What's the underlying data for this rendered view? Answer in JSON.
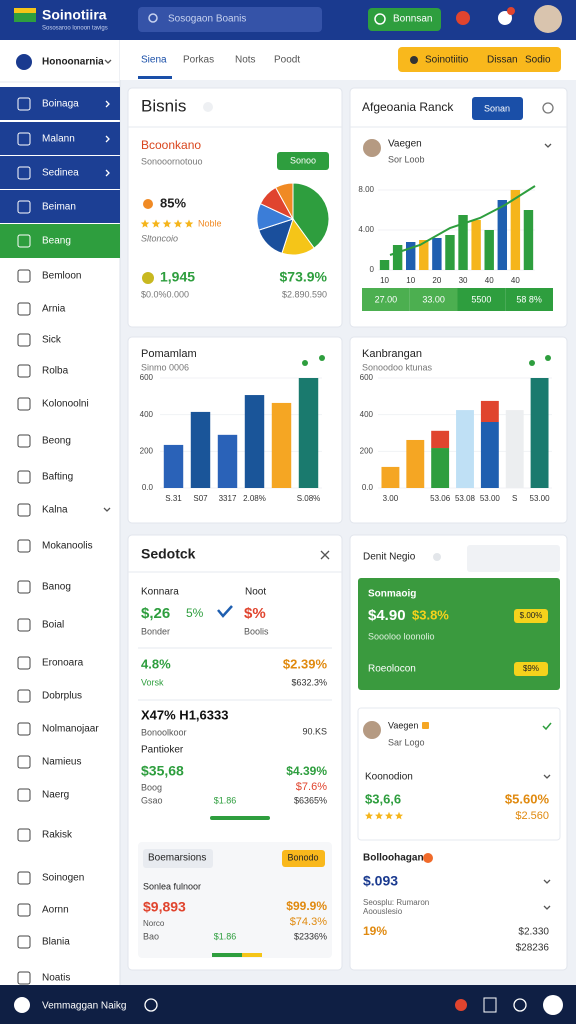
{
  "header": {
    "title": "Soinotiira",
    "subtitle": "Sososaroo lonoon tavigs",
    "search": "Sosogaon Boanis",
    "button": "Bonnsan"
  },
  "sidebar": {
    "top": "Honoonarnia",
    "items": [
      "Boinaga",
      "Malann",
      "Sedinea",
      "Beiman",
      "Beang",
      "Bemloon",
      "Arnia",
      "Sick",
      "Rolba",
      "Kolonoolni",
      "Beong",
      "Bafting",
      "Kalna",
      "Mokanoolis",
      "Banog",
      "Boial",
      "Eronoara",
      "Dobrplus",
      "Nolmanojaar",
      "Namieus",
      "Naerg",
      "Rakisk",
      "Soinogen",
      "Aornn",
      "Blania",
      "Noatis"
    ]
  },
  "tabs": [
    "Siena",
    "Porkas",
    "Nots",
    "Poodt"
  ],
  "actions": [
    "Soinotiitio",
    "Dissan",
    "Sodio"
  ],
  "card1": {
    "title": "Bisnis",
    "subtitle": "Bcoonkano",
    "note": "Sonooornotouo",
    "button": "Sonoo",
    "stat": "85%",
    "rating": "Noble",
    "rating_note": "Sltoncoio",
    "value1": "1,945",
    "value1_note": "$0.0%0.000",
    "value2": "$73.9%",
    "value2_note": "$2.890.590",
    "pie": {
      "values": [
        40,
        15,
        15,
        12,
        10,
        8
      ],
      "colors": [
        "#2e9e3e",
        "#f5c518",
        "#1a4f9c",
        "#3b7dd8",
        "#e0442e",
        "#f08a24"
      ]
    }
  },
  "card2": {
    "title": "Afgeoania Ranck",
    "button": "Sonan",
    "person": "Vaegen",
    "person_note": "Sor Loob",
    "chart": {
      "ylim": [
        0,
        8
      ],
      "yticks": [
        0,
        {
          "value": 4,
          "label": "4.00"
        },
        {
          "value": 8,
          "label": "8.00"
        }
      ],
      "categories": [
        "10",
        null,
        "10",
        null,
        "20",
        null,
        "30",
        null,
        "40",
        null,
        "40",
        null
      ],
      "bars": [
        [
          {
            "value": 1,
            "color": "#2e9e3e"
          }
        ],
        [
          {
            "value": 2.5,
            "color": "#2e9e3e"
          }
        ],
        [
          {
            "value": 2.8,
            "color": "#1f5fb0"
          }
        ],
        [
          {
            "value": 3,
            "color": "#f5b51c"
          }
        ],
        [
          {
            "value": 3.2,
            "color": "#1f5fb0"
          }
        ],
        [
          {
            "value": 3.5,
            "color": "#2e9e3e"
          }
        ],
        [
          {
            "value": 5.5,
            "color": "#2e9e3e"
          }
        ],
        [
          {
            "value": 5,
            "color": "#f5b51c"
          }
        ],
        [
          {
            "value": 4,
            "color": "#2e9e3e"
          }
        ],
        [
          {
            "value": 7,
            "color": "#1f5fb0"
          }
        ],
        [
          {
            "value": 8,
            "color": "#f5b51c"
          }
        ],
        [
          {
            "value": 6,
            "color": "#2e9e3e"
          }
        ]
      ]
    },
    "stats": [
      "27.00",
      "33.00",
      "5500",
      "58 8%"
    ]
  },
  "card3": {
    "title": "Pomamlam",
    "subtitle": "Sinmo 0006",
    "chart": {
      "ylim": [
        0,
        600
      ],
      "yticks": [
        {
          "value": 0,
          "label": "0.0"
        },
        200,
        400,
        600
      ],
      "categories": [
        "S.31",
        "S07",
        "3317",
        "2.08%",
        null,
        "S.08%"
      ],
      "bars": [
        [
          {
            "value": 235,
            "color": "#2a62b8"
          }
        ],
        [
          {
            "value": 415,
            "color": "#1a5599"
          }
        ],
        [
          {
            "value": 290,
            "color": "#2a62b8"
          }
        ],
        [
          {
            "value": 507,
            "color": "#1a5599"
          }
        ],
        [
          {
            "value": 464,
            "color": "#f5a623"
          }
        ],
        [
          {
            "value": 600,
            "color": "#1a7a6e"
          }
        ]
      ]
    }
  },
  "card4": {
    "title": "Kanbrangan",
    "subtitle": "Sonoodoo ktunas",
    "chart": {
      "ylim": [
        0,
        600
      ],
      "yticks": [
        {
          "value": 0,
          "label": "0.0"
        },
        200,
        400,
        600
      ],
      "categories": [
        "3.00",
        null,
        "53.06",
        "53.08",
        "53.00",
        "S",
        "53.00"
      ],
      "bars": [
        [
          {
            "value": 115,
            "color": "#f5a623"
          }
        ],
        [
          {
            "value": 262,
            "color": "#f5a623"
          }
        ],
        [
          {
            "value": 218,
            "color": "#2e9e3e"
          },
          {
            "value": 94,
            "color": "#e0442e"
          }
        ],
        [
          {
            "value": 425,
            "color": "#bfe0f5"
          }
        ],
        [
          {
            "value": 360,
            "color": "#1f5fb0"
          },
          {
            "value": 115,
            "color": "#e0442e"
          }
        ],
        [
          {
            "value": 425,
            "color": "#eceef0"
          }
        ],
        [
          {
            "value": 600,
            "color": "#1a7a6e"
          }
        ]
      ]
    }
  },
  "card5": {
    "title": "Sedotck",
    "label1": "Konnara",
    "label2": "Noot",
    "v1": "$,26",
    "v1b": "5%",
    "v2": "$%",
    "n1": "Bonder",
    "n2": "Boolis",
    "r1a": "4.8%",
    "r1b": "$2.39%",
    "r1c": "Vorsk",
    "r1d": "$632.3%",
    "headline": "X47% H1,6333",
    "h_note": "Bonoolkoor",
    "h_value": "90.KS",
    "section": "Pantioker",
    "r2a": "$35,68",
    "r2b": "$4.39%",
    "r2c": "Boog",
    "r2d": "$7.6%",
    "r2e": "Gsao",
    "r2f": "$1.86",
    "r2g": "$6365%",
    "box": {
      "label": "Boemarsions",
      "button": "Bonodo",
      "title": "Sonlea fulnoor",
      "a": "$9,893",
      "b": "$99.9%",
      "c": "Norco",
      "d": "$74.3%",
      "e": "Bao",
      "f": "$1.86",
      "g": "$2336%"
    }
  },
  "card6": {
    "title": "Denit Negio",
    "green": {
      "title": "Sonmaoig",
      "value": "$4.90",
      "change": "$3.8%",
      "note": "Soooloo loonolio",
      "pill1": "$.00%",
      "label": "Roeolocon",
      "pill2": "$9%"
    },
    "person": "Vaegen",
    "person_note": "Sar Logo",
    "section": "Koonodion",
    "a": "$3,6,6",
    "b": "$5.60%",
    "c": "$2.560",
    "section2": "Bolloohagan",
    "value": "$.093",
    "note1": "Seosplu: Rumaron",
    "note2": "Aoouslesio",
    "pct": "19%",
    "d": "$2.330",
    "e": "$28236"
  },
  "footer": {
    "text": "Vemmaggan Naikg"
  }
}
